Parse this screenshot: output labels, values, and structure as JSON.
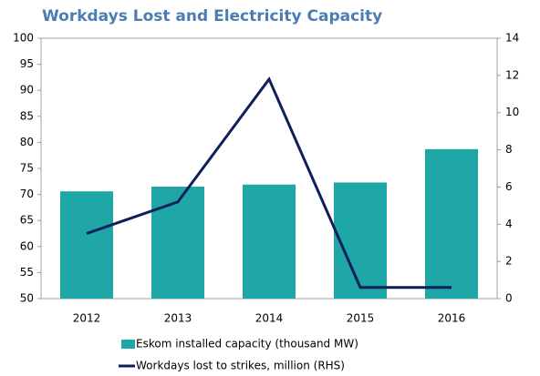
{
  "chart_data": {
    "type": "bar",
    "title": "Workdays Lost and Electricity Capacity",
    "categories": [
      "2012",
      "2013",
      "2014",
      "2015",
      "2016"
    ],
    "series": [
      {
        "name": "Eskom installed capacity (thousand MW)",
        "color": "#1fa6a6",
        "type": "bar",
        "values": [
          70.6,
          71.5,
          71.9,
          72.3,
          78.7
        ]
      },
      {
        "name": "Workdays lost to strikes, million (RHS)",
        "color": "#0f1f5c",
        "type": "line",
        "axis": "y2",
        "values": [
          3.5,
          5.2,
          11.8,
          0.6,
          0.6
        ]
      }
    ],
    "ylim": [
      50,
      100
    ],
    "yticks": [
      50,
      55,
      60,
      65,
      70,
      75,
      80,
      85,
      90,
      95,
      100
    ],
    "y2lim": [
      0,
      14
    ],
    "y2ticks": [
      0,
      2,
      4,
      6,
      8,
      10,
      12,
      14
    ],
    "legend": "bottom"
  }
}
